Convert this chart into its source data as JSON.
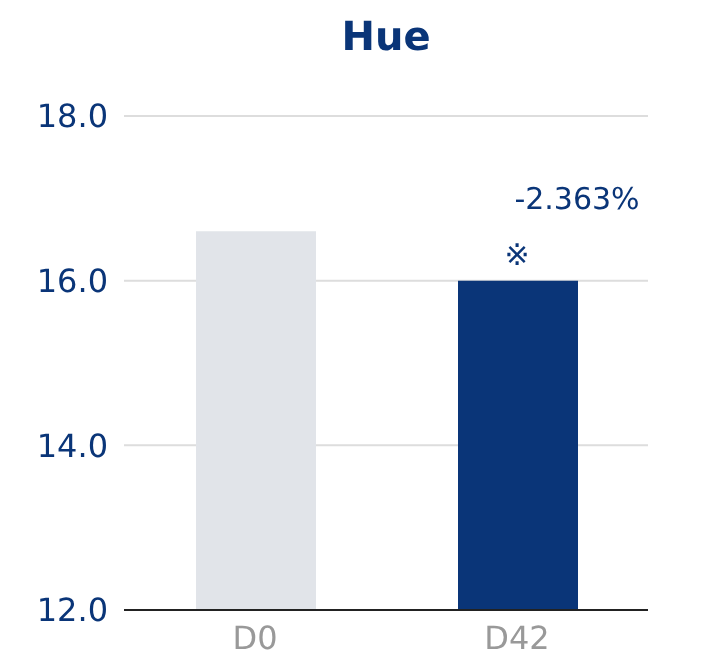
{
  "chart_data": {
    "type": "bar",
    "title": "Hue",
    "categories": [
      "D0",
      "D42"
    ],
    "values": [
      16.6,
      16.0
    ],
    "colors": [
      "#e1e4e9",
      "#0a3578"
    ],
    "ylim": [
      12,
      18
    ],
    "yticks": [
      {
        "value": 12,
        "label": "12.0"
      },
      {
        "value": 14,
        "label": "14.0"
      },
      {
        "value": 16,
        "label": "16.0"
      },
      {
        "value": 18,
        "label": "18.0"
      }
    ],
    "grid": "y",
    "annotations": [
      {
        "text": "-2.363%",
        "x": "D42",
        "y": 16.0
      },
      {
        "text": "※",
        "x": "D42",
        "y": 16.0
      }
    ]
  }
}
